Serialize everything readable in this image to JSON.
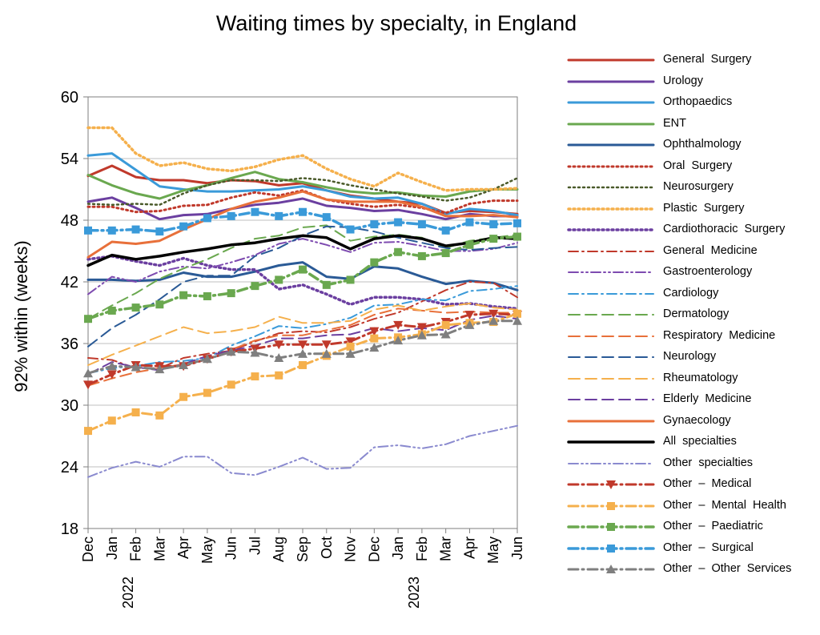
{
  "chart_data": {
    "type": "line",
    "title": "Waiting times by specialty, in England",
    "xlabel": "",
    "ylabel": "92% within  (weeks)",
    "ylim": [
      18,
      60
    ],
    "yticks": [
      "18",
      "24",
      "30",
      "36",
      "42",
      "48",
      "54",
      "60"
    ],
    "grid": true,
    "legend_position": "right",
    "categories": [
      "Dec",
      "Jan",
      "Feb",
      "Mar",
      "Apr",
      "May",
      "Jun",
      "Jul",
      "Aug",
      "Sep",
      "Oct",
      "Nov",
      "Dec",
      "Jan",
      "Feb",
      "Mar",
      "Apr",
      "May",
      "Jun"
    ],
    "year_labels": [
      {
        "index": 1,
        "text": "2022"
      },
      {
        "index": 13,
        "text": "2023"
      }
    ],
    "series": [
      {
        "name": "General  Surgery",
        "color": "#c0392b",
        "style": "solid",
        "width": 3,
        "values": [
          52.3,
          53.3,
          52.2,
          51.9,
          51.9,
          51.6,
          51.9,
          51.8,
          51.4,
          51.6,
          50.9,
          50.4,
          50.1,
          49.8,
          49.6,
          48.7,
          48.9,
          48.8,
          48.6
        ]
      },
      {
        "name": "Urology",
        "color": "#6b3fa0",
        "style": "solid",
        "width": 3,
        "values": [
          49.8,
          50.2,
          49.2,
          48.1,
          48.5,
          48.6,
          49.1,
          49.5,
          49.7,
          50.1,
          49.4,
          49.2,
          48.9,
          49.0,
          48.6,
          48.1,
          48.6,
          48.4,
          48.4
        ]
      },
      {
        "name": "Orthopaedics",
        "color": "#3a9ad9",
        "style": "solid",
        "width": 3,
        "values": [
          54.3,
          54.5,
          52.9,
          51.3,
          51.0,
          50.8,
          50.8,
          50.9,
          51.0,
          51.3,
          50.9,
          50.3,
          50.1,
          50.2,
          49.6,
          48.6,
          49.1,
          48.9,
          48.5
        ]
      },
      {
        "name": "ENT",
        "color": "#6aa84f",
        "style": "solid",
        "width": 3,
        "values": [
          52.4,
          51.4,
          50.6,
          50.1,
          50.9,
          51.4,
          52.1,
          52.7,
          52.0,
          51.7,
          51.2,
          50.8,
          50.6,
          50.7,
          50.4,
          50.3,
          50.8,
          51.0,
          51.0
        ]
      },
      {
        "name": "Ophthalmology",
        "color": "#2a5a96",
        "style": "solid",
        "width": 3,
        "values": [
          42.2,
          42.2,
          42.1,
          42.2,
          42.9,
          42.5,
          42.5,
          43.0,
          43.6,
          43.9,
          42.5,
          42.3,
          43.5,
          43.3,
          42.5,
          41.8,
          42.1,
          41.9,
          41.2
        ]
      },
      {
        "name": "Oral  Surgery",
        "color": "#c0392b",
        "style": "dot",
        "width": 3,
        "values": [
          49.3,
          49.3,
          48.8,
          48.9,
          49.4,
          49.5,
          50.2,
          50.7,
          50.4,
          50.9,
          50.0,
          49.6,
          49.3,
          49.5,
          49.2,
          48.7,
          49.6,
          49.9,
          49.9
        ]
      },
      {
        "name": "Neurosurgery",
        "color": "#4a5a2a",
        "style": "dot",
        "width": 2.5,
        "values": [
          49.6,
          49.5,
          49.6,
          49.5,
          50.6,
          51.4,
          51.9,
          51.9,
          51.8,
          52.1,
          51.9,
          51.4,
          51.0,
          50.6,
          50.3,
          49.9,
          50.2,
          51.0,
          52.1
        ]
      },
      {
        "name": "Plastic  Surgery",
        "color": "#f5b04c",
        "style": "dot",
        "width": 3.5,
        "values": [
          57.0,
          57.0,
          54.5,
          53.3,
          53.6,
          53.0,
          52.8,
          53.2,
          53.9,
          54.3,
          53.0,
          52.0,
          51.3,
          52.6,
          51.7,
          50.9,
          51.0,
          51.0,
          51.1
        ]
      },
      {
        "name": "Cardiothoracic  Surgery",
        "color": "#6b3fa0",
        "style": "dot",
        "width": 3.5,
        "values": [
          44.2,
          44.5,
          44.0,
          43.6,
          44.3,
          43.6,
          43.2,
          43.2,
          41.3,
          41.7,
          40.8,
          39.8,
          40.5,
          40.5,
          40.3,
          39.8,
          39.9,
          39.6,
          39.4
        ]
      },
      {
        "name": "General  Medicine",
        "color": "#c0392b",
        "style": "dashdot",
        "width": 2,
        "values": [
          34.6,
          34.4,
          33.6,
          33.6,
          34.6,
          35.0,
          35.3,
          36.2,
          37.0,
          37.2,
          37.1,
          37.6,
          38.4,
          39.0,
          40.1,
          41.2,
          42.0,
          41.9,
          40.5
        ]
      },
      {
        "name": "Gastroenterology",
        "color": "#7e4bb0",
        "style": "dashdotdot",
        "width": 2,
        "values": [
          40.8,
          42.5,
          42.0,
          43.0,
          43.5,
          43.3,
          43.9,
          44.6,
          45.7,
          46.2,
          45.6,
          44.9,
          45.8,
          45.9,
          45.5,
          45.0,
          45.0,
          45.2,
          45.8
        ]
      },
      {
        "name": "Cardiology",
        "color": "#3a9ad9",
        "style": "dashdot",
        "width": 2,
        "values": [
          33.1,
          33.6,
          33.8,
          34.2,
          34.3,
          34.6,
          35.8,
          36.7,
          37.7,
          37.5,
          37.9,
          38.5,
          39.7,
          39.8,
          40.3,
          40.2,
          41.1,
          41.3,
          41.6
        ]
      },
      {
        "name": "Dermatology",
        "color": "#6aa84f",
        "style": "dash",
        "width": 2,
        "values": [
          38.4,
          39.7,
          40.9,
          42.3,
          43.3,
          44.2,
          45.3,
          46.2,
          46.5,
          47.3,
          47.5,
          46.0,
          46.4,
          46.6,
          46.3,
          45.3,
          46.0,
          46.3,
          46.6
        ]
      },
      {
        "name": "Respiratory  Medicine",
        "color": "#e8703a",
        "style": "dash",
        "width": 2,
        "values": [
          31.9,
          32.6,
          33.2,
          33.6,
          34.0,
          34.5,
          35.4,
          36.3,
          36.8,
          36.8,
          37.3,
          37.8,
          38.8,
          39.4,
          39.2,
          39.0,
          39.1,
          39.0,
          39.0
        ]
      },
      {
        "name": "Neurology",
        "color": "#2a5a96",
        "style": "dash",
        "width": 2,
        "values": [
          35.7,
          37.5,
          38.8,
          40.3,
          42.0,
          42.6,
          42.6,
          44.5,
          45.3,
          46.5,
          47.4,
          47.3,
          46.9,
          46.3,
          45.8,
          45.3,
          45.1,
          45.3,
          45.4
        ]
      },
      {
        "name": "Rheumatology",
        "color": "#f5b04c",
        "style": "dash",
        "width": 2,
        "values": [
          33.9,
          34.9,
          35.8,
          36.7,
          37.6,
          37.0,
          37.2,
          37.6,
          38.6,
          38.0,
          38.0,
          38.2,
          39.3,
          39.7,
          39.2,
          39.6,
          39.9,
          39.5,
          39.3
        ]
      },
      {
        "name": "Elderly  Medicine",
        "color": "#6b3fa0",
        "style": "dash",
        "width": 2,
        "values": [
          33.0,
          34.2,
          33.7,
          33.4,
          34.0,
          34.8,
          35.3,
          35.8,
          36.5,
          36.5,
          36.8,
          36.9,
          37.5,
          37.2,
          37.5,
          37.3,
          38.3,
          38.7,
          38.4
        ]
      },
      {
        "name": "Gynaecology",
        "color": "#e8703a",
        "style": "solid",
        "width": 3,
        "values": [
          44.4,
          45.9,
          45.7,
          46.0,
          47.1,
          48.1,
          49.1,
          49.8,
          50.2,
          50.8,
          50.0,
          49.8,
          49.8,
          49.8,
          49.3,
          48.4,
          48.4,
          48.5,
          48.3
        ]
      },
      {
        "name": "All  specialties",
        "color": "#000000",
        "style": "solid",
        "width": 3.5,
        "values": [
          43.6,
          44.6,
          44.2,
          44.5,
          44.9,
          45.2,
          45.6,
          45.8,
          46.2,
          46.5,
          46.3,
          45.2,
          46.2,
          46.5,
          46.2,
          45.5,
          45.8,
          46.3,
          46.2
        ]
      },
      {
        "name": "Other  specialties",
        "color": "#8a8acf",
        "style": "dashdotdot",
        "width": 2,
        "values": [
          23.0,
          23.9,
          24.5,
          24.0,
          25.0,
          25.0,
          23.4,
          23.2,
          24.0,
          24.9,
          23.8,
          23.9,
          25.9,
          26.1,
          25.8,
          26.2,
          27.0,
          27.5,
          28.0
        ]
      },
      {
        "name": "Other  –  Medical",
        "color": "#c0392b",
        "style": "dashdot",
        "width": 3,
        "marker": "triangle-down",
        "values": [
          32.0,
          33.0,
          33.9,
          33.8,
          33.8,
          34.5,
          35.2,
          35.5,
          35.9,
          35.9,
          35.9,
          36.2,
          37.2,
          37.8,
          37.6,
          38.1,
          38.8,
          38.9,
          38.8
        ]
      },
      {
        "name": "Other  –  Mental  Health",
        "color": "#f5b04c",
        "style": "dashdot",
        "width": 3,
        "marker": "square",
        "values": [
          27.5,
          28.5,
          29.3,
          29.0,
          30.8,
          31.2,
          32.0,
          32.8,
          32.9,
          33.9,
          34.8,
          35.7,
          36.5,
          36.6,
          36.9,
          37.8,
          38.0,
          38.1,
          38.9
        ]
      },
      {
        "name": "Other  –  Paediatric",
        "color": "#6aa84f",
        "style": "dashdot",
        "width": 3.5,
        "marker": "square",
        "values": [
          38.4,
          39.2,
          39.5,
          39.8,
          40.7,
          40.6,
          40.9,
          41.6,
          42.2,
          43.2,
          41.7,
          42.2,
          43.9,
          44.9,
          44.5,
          44.8,
          45.6,
          46.2,
          46.4
        ]
      },
      {
        "name": "Other  –  Surgical",
        "color": "#3a9ad9",
        "style": "dashdot",
        "width": 3.5,
        "marker": "square",
        "values": [
          47.0,
          47.0,
          47.1,
          46.9,
          47.4,
          48.2,
          48.4,
          48.8,
          48.4,
          48.8,
          48.3,
          47.1,
          47.6,
          47.8,
          47.6,
          47.0,
          47.8,
          47.6,
          47.7
        ]
      },
      {
        "name": "Other  –  Other  Services",
        "color": "#7f7f7f",
        "style": "dashdot",
        "width": 3,
        "marker": "triangle",
        "values": [
          33.1,
          33.8,
          33.7,
          33.5,
          33.9,
          34.5,
          35.2,
          35.1,
          34.6,
          35.0,
          35.0,
          35.0,
          35.6,
          36.3,
          36.8,
          36.9,
          37.8,
          38.2,
          38.2
        ]
      }
    ]
  }
}
